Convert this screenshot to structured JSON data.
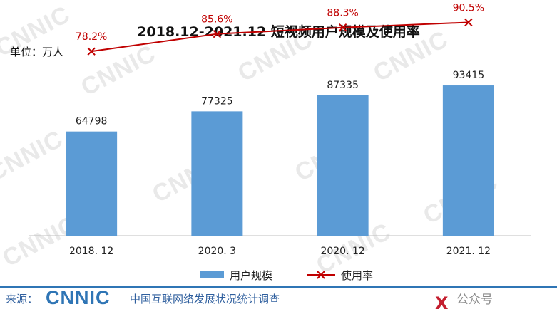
{
  "chart_data": {
    "type": "bar",
    "title": "2018.12-2021.12 短视频用户规模及使用率",
    "unit_label": "单位：万人",
    "categories": [
      "2018. 12",
      "2020. 3",
      "2020. 12",
      "2021. 12"
    ],
    "series": [
      {
        "name": "用户规模",
        "type": "bar",
        "color": "#5b9bd5",
        "values": [
          64798,
          77325,
          87335,
          93415
        ]
      },
      {
        "name": "使用率",
        "type": "line",
        "color": "#c00000",
        "values": [
          78.2,
          85.6,
          88.3,
          90.5
        ],
        "labels": [
          "78.2%",
          "85.6%",
          "88.3%",
          "90.5%"
        ]
      }
    ],
    "ylim_bar": [
      0,
      120000
    ],
    "ylim_line": [
      0,
      100
    ],
    "legend_position": "bottom"
  },
  "watermark_text": "CNNIC",
  "footer": {
    "source_label": "来源：",
    "logo": "CNNIC",
    "org": "中国互联网络发展状况统计调查",
    "badge": "公众号",
    "brand": "X"
  }
}
